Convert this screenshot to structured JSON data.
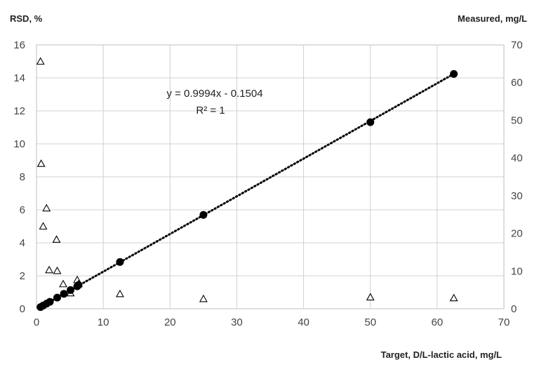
{
  "chart_data": {
    "type": "scatter",
    "xlabel": "Target, D/L-lactic acid, mg/L",
    "ylabel_left": "RSD, %",
    "ylabel_right": "Measured, mg/L",
    "xlim": [
      0,
      70
    ],
    "ylim_left": [
      0,
      16
    ],
    "ylim_right": [
      0,
      70
    ],
    "x_ticks": [
      "0",
      "10",
      "20",
      "30",
      "40",
      "50",
      "60",
      "70"
    ],
    "y_left_ticks": [
      "0",
      "2",
      "4",
      "6",
      "8",
      "10",
      "12",
      "14",
      "16"
    ],
    "y_right_ticks": [
      "0",
      "10",
      "20",
      "30",
      "40",
      "50",
      "60",
      "70"
    ],
    "grid": true,
    "series": [
      {
        "marker": "filled-circle",
        "axis": "right",
        "color": "#000000",
        "x": [
          0.6,
          1.0,
          1.5,
          2.0,
          3.1,
          4.1,
          5.1,
          6.1,
          6.3,
          12.5,
          25,
          50,
          62.5
        ],
        "y": [
          0.45,
          0.85,
          1.35,
          1.85,
          2.95,
          3.95,
          4.95,
          5.95,
          6.3,
          12.4,
          24.9,
          49.5,
          62.3
        ]
      },
      {
        "marker": "open-triangle",
        "axis": "left",
        "color": "#000000",
        "x": [
          0.6,
          0.7,
          1.0,
          1.5,
          1.9,
          3.0,
          3.1,
          4.0,
          5.1,
          6.1,
          6.3,
          12.5,
          25,
          50,
          62.5
        ],
        "y": [
          15.0,
          8.8,
          5.0,
          6.1,
          2.35,
          4.2,
          2.3,
          1.5,
          0.95,
          1.75,
          1.5,
          0.9,
          0.6,
          0.7,
          0.65
        ]
      }
    ],
    "trendline": {
      "style": "dotted",
      "axis": "right",
      "slope": 0.9994,
      "intercept": -0.1504,
      "x_range": [
        0.6,
        62.5
      ],
      "equation": "y = 0.9994x - 0.1504",
      "r2": "R² = 1"
    }
  }
}
